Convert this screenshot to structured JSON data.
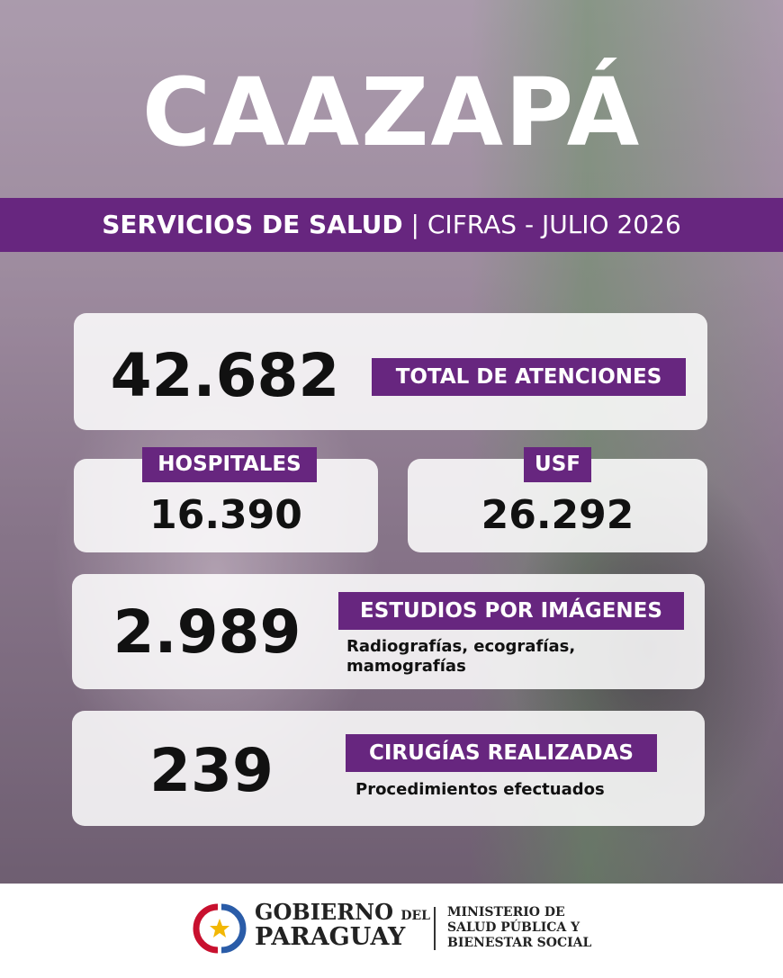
{
  "header": {
    "title": "CAAZAPÁ",
    "subtitle_bold": "SERVICIOS DE SALUD",
    "subtitle_light": "| CIFRAS - JULIO 2026"
  },
  "cards": [
    {
      "number": "42.682",
      "label": "TOTAL DE ATENCIONES"
    },
    {
      "number": "16.390",
      "label": "HOSPITALES"
    },
    {
      "number": "26.292",
      "label": "USF"
    },
    {
      "number": "2.989",
      "label": "ESTUDIOS POR IMÁGENES",
      "description": [
        "Radiografías, ecografías,",
        "mamografías"
      ]
    },
    {
      "number": "239",
      "label": "CIRUGÍAS REALIZADAS",
      "description": [
        "Procedimientos efectuados"
      ]
    }
  ],
  "footer": {
    "gobierno": "GOBIERNO",
    "del": "DEL",
    "paraguay": "PARAGUAY",
    "ministry": [
      "MINISTERIO DE",
      "SALUD PÚBLICA Y",
      "BIENESTAR SOCIAL"
    ]
  }
}
